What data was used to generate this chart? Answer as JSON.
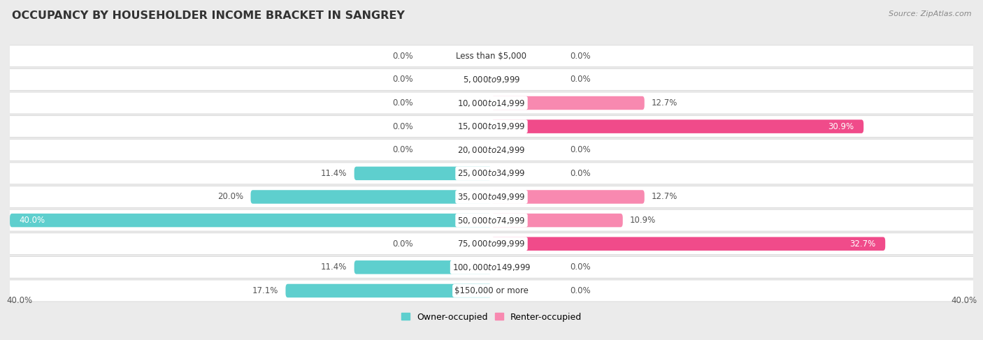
{
  "title": "OCCUPANCY BY HOUSEHOLDER INCOME BRACKET IN SANGREY",
  "source": "Source: ZipAtlas.com",
  "categories": [
    "Less than $5,000",
    "$5,000 to $9,999",
    "$10,000 to $14,999",
    "$15,000 to $19,999",
    "$20,000 to $24,999",
    "$25,000 to $34,999",
    "$35,000 to $49,999",
    "$50,000 to $74,999",
    "$75,000 to $99,999",
    "$100,000 to $149,999",
    "$150,000 or more"
  ],
  "owner_values": [
    0.0,
    0.0,
    0.0,
    0.0,
    0.0,
    11.4,
    20.0,
    40.0,
    0.0,
    11.4,
    17.1
  ],
  "renter_values": [
    0.0,
    0.0,
    12.7,
    30.9,
    0.0,
    0.0,
    12.7,
    10.9,
    32.7,
    0.0,
    0.0
  ],
  "owner_color": "#5ecfce",
  "renter_color": "#f889b0",
  "renter_color_hot": "#f04b8a",
  "bg_color": "#ebebeb",
  "row_bg": "#ffffff",
  "row_border": "#d8d8d8",
  "max_val": 40.0,
  "bar_height": 0.58,
  "title_fontsize": 11.5,
  "label_fontsize": 8.5,
  "category_fontsize": 8.5,
  "source_fontsize": 8
}
